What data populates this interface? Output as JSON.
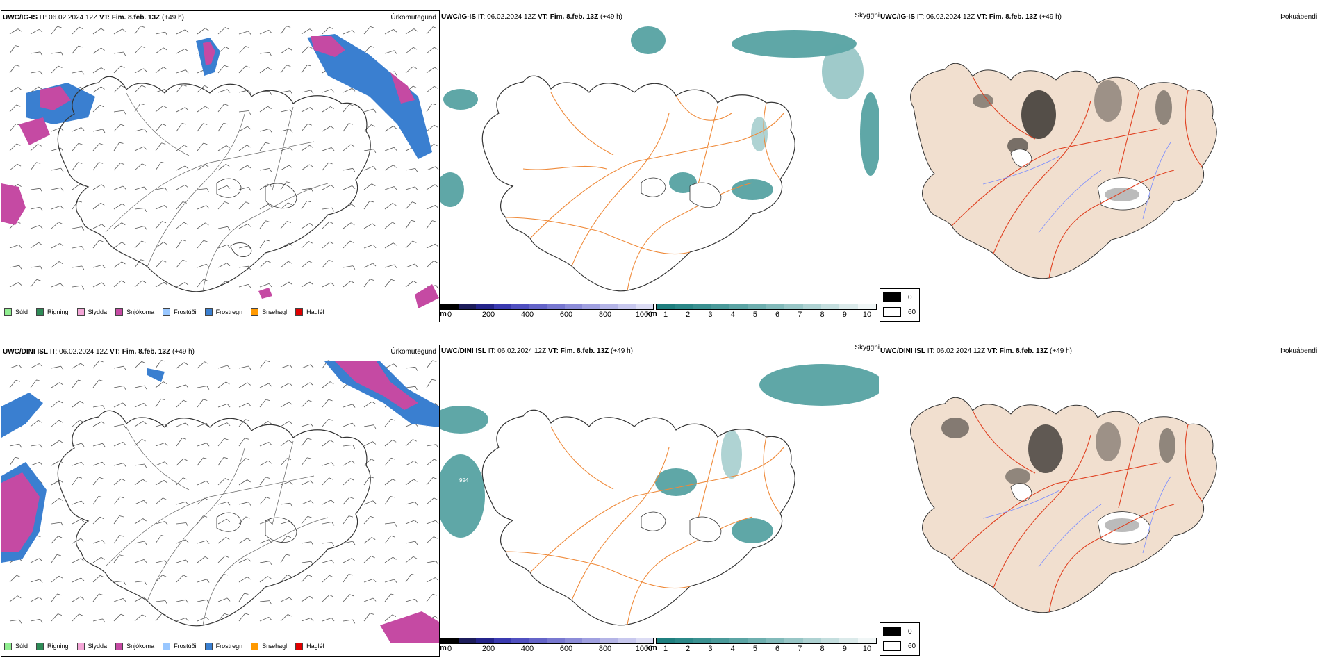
{
  "colors": {
    "precip": {
      "drizzle": "#90ee90",
      "rain": "#2e8b57",
      "sleet": "#f4a6d7",
      "snow": "#c54aa3",
      "frost_drizzle": "#99c7ff",
      "frost_rain": "#3a7fd0",
      "snow_hail": "#ff9900",
      "hail": "#e00000"
    },
    "road": "#ef8a3a",
    "coast": "#333333",
    "cloud": "#2a8a8a",
    "land_fog": "#f1dfcf"
  },
  "rows": [
    {
      "model": "UWC/IG-IS",
      "it_label": "IT:",
      "it_value": "06.02.2024 12Z",
      "vt_label": "VT:",
      "vt_value": "Fim. 8.feb. 13Z",
      "lead": "(+49 h)",
      "precip_title": "Úrkomutegund",
      "cloud_title": "Skyggni",
      "fog_title": "Þokuábendi"
    },
    {
      "model": "UWC/DINI ISL",
      "it_label": "IT:",
      "it_value": "06.02.2024 12Z",
      "vt_label": "VT:",
      "vt_value": "Fim. 8.feb. 13Z",
      "lead": "(+49 h)",
      "precip_title": "Úrkomutegund",
      "cloud_title": "Skyggni",
      "fog_title": "Þokuábendi"
    }
  ],
  "precip_legend": [
    "Súld",
    "Rigning",
    "Slydda",
    "Snjókoma",
    "Frostúði",
    "Frostregn",
    "Snæhagl",
    "Haglél"
  ],
  "precip_legend_keys": [
    "drizzle",
    "rain",
    "sleet",
    "snow",
    "frost_drizzle",
    "frost_rain",
    "snow_hail",
    "hail"
  ],
  "height_bar": {
    "unit": "m",
    "ticks": [
      "0",
      "200",
      "400",
      "600",
      "800",
      "1000"
    ],
    "colors": [
      "#000000",
      "#1c1c5a",
      "#24248a",
      "#3a3ab0",
      "#5050c0",
      "#6464c8",
      "#7878d0",
      "#8c8cd8",
      "#a0a0e0",
      "#b4b4e6",
      "#c8c8ee",
      "#dcdcf4"
    ]
  },
  "km_bar": {
    "unit": "km",
    "ticks": [
      "1",
      "2",
      "3",
      "4",
      "5",
      "6",
      "7",
      "8",
      "9",
      "10"
    ],
    "colors": [
      "#1f7f7f",
      "#2b8888",
      "#3a9191",
      "#4a9a9a",
      "#5ba4a4",
      "#6eafaf",
      "#82baba",
      "#98c6c6",
      "#aed2d2",
      "#c4dede",
      "#dbeaea",
      "#f0f6f6"
    ]
  },
  "fog_legend": {
    "values": [
      "0",
      "60"
    ],
    "colors": [
      "#000000",
      "#ffffff"
    ]
  },
  "annotations": {
    "row2_cloud_point": "994"
  }
}
